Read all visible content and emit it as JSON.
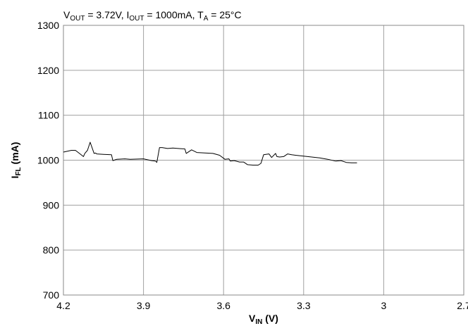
{
  "chart_data": {
    "type": "line",
    "title": {
      "parts": [
        {
          "text": "V",
          "sub": false
        },
        {
          "text": "OUT",
          "sub": true
        },
        {
          "text": " = 3.72V, I",
          "sub": false
        },
        {
          "text": "OUT",
          "sub": true
        },
        {
          "text": " = 1000mA, T",
          "sub": false
        },
        {
          "text": "A",
          "sub": true
        },
        {
          "text": " = 25°C",
          "sub": false
        }
      ]
    },
    "xlabel": {
      "main": "V",
      "sub": "IN",
      "rest": " (V)"
    },
    "ylabel": {
      "main": "I",
      "sub": "FL",
      "rest": " (mA)"
    },
    "xlim": [
      4.2,
      2.7
    ],
    "ylim": [
      700,
      1300
    ],
    "x_reversed": true,
    "grid": true,
    "x_ticks": [
      "4.2",
      "3.9",
      "3.6",
      "3.3",
      "3",
      "2.7"
    ],
    "y_ticks": [
      "700",
      "800",
      "900",
      "1000",
      "1100",
      "1200",
      "1300"
    ],
    "x_tick_values": [
      4.2,
      3.9,
      3.6,
      3.3,
      3.0,
      2.7
    ],
    "y_tick_values": [
      700,
      800,
      900,
      1000,
      1100,
      1200,
      1300
    ],
    "series": [
      {
        "color": "#000000",
        "x": [
          4.2,
          4.17,
          4.155,
          4.14,
          4.125,
          4.12,
          4.11,
          4.1,
          4.085,
          4.08,
          4.075,
          4.05,
          4.02,
          4.015,
          4.01,
          4.0,
          3.97,
          3.95,
          3.9,
          3.87,
          3.855,
          3.85,
          3.84,
          3.83,
          3.81,
          3.79,
          3.77,
          3.745,
          3.74,
          3.72,
          3.7,
          3.67,
          3.64,
          3.615,
          3.595,
          3.58,
          3.575,
          3.56,
          3.54,
          3.525,
          3.51,
          3.49,
          3.47,
          3.46,
          3.45,
          3.43,
          3.42,
          3.405,
          3.4,
          3.39,
          3.375,
          3.36,
          3.345,
          3.33,
          3.3,
          3.27,
          3.24,
          3.21,
          3.18,
          3.16,
          3.14,
          3.12,
          3.1
        ],
        "y": [
          1018,
          1022,
          1022,
          1015,
          1008,
          1015,
          1022,
          1040,
          1015,
          1016,
          1014,
          1013,
          1012,
          999,
          1000,
          1002,
          1003,
          1002,
          1003,
          999,
          998,
          995,
          1028,
          1028,
          1026,
          1027,
          1026,
          1025,
          1015,
          1023,
          1017,
          1016,
          1015,
          1011,
          1002,
          1003,
          998,
          999,
          996,
          996,
          990,
          989,
          989,
          993,
          1012,
          1014,
          1006,
          1015,
          1008,
          1007,
          1008,
          1014,
          1012,
          1011,
          1009,
          1007,
          1005,
          1002,
          998,
          999,
          995,
          994,
          994
        ]
      }
    ]
  }
}
